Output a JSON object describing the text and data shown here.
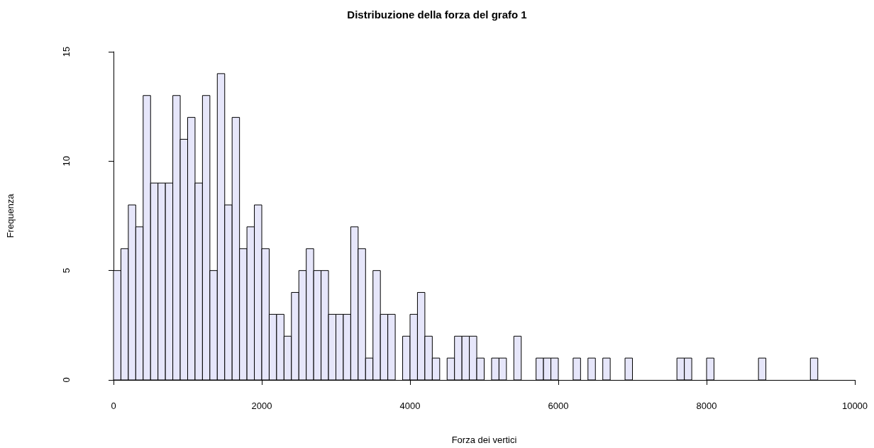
{
  "chart_data": {
    "type": "histogram",
    "title": "Distribuzione della forza del grafo 1",
    "xlabel": "Forza dei vertici",
    "ylabel": "Frequenza",
    "bins": [
      0,
      100,
      200,
      300,
      400,
      500,
      600,
      700,
      800,
      900,
      1000,
      1100,
      1200,
      1300,
      1400,
      1500,
      1600,
      1700,
      1800,
      1900,
      2000,
      2100,
      2200,
      2300,
      2400,
      2500,
      2600,
      2700,
      2800,
      2900,
      3000,
      3100,
      3200,
      3300,
      3400,
      3500,
      3600,
      3700,
      3800,
      3900,
      4000,
      4100,
      4200,
      4300,
      4400,
      4500,
      4600,
      4700,
      4800,
      4900,
      5000,
      5100,
      5200,
      5300,
      5400,
      5500,
      5600,
      5700,
      5800,
      5900,
      6000,
      6100,
      6200,
      6300,
      6400,
      6500,
      6600,
      6700,
      6800,
      6900,
      7000,
      7100,
      7200,
      7300,
      7400,
      7500,
      7600,
      7700,
      7800,
      7900,
      8000,
      8100,
      8200,
      8300,
      8400,
      8500,
      8600,
      8700,
      8800,
      8900,
      9000,
      9100,
      9200,
      9300,
      9400,
      9500
    ],
    "values": [
      5,
      6,
      8,
      7,
      13,
      9,
      9,
      9,
      13,
      11,
      12,
      9,
      13,
      5,
      14,
      8,
      12,
      6,
      7,
      8,
      6,
      3,
      3,
      2,
      4,
      5,
      6,
      5,
      5,
      3,
      3,
      3,
      7,
      6,
      1,
      5,
      3,
      3,
      0,
      2,
      3,
      4,
      2,
      1,
      0,
      1,
      2,
      2,
      2,
      1,
      0,
      1,
      1,
      0,
      2,
      0,
      0,
      1,
      1,
      1,
      0,
      0,
      1,
      0,
      1,
      0,
      1,
      0,
      0,
      1,
      0,
      0,
      0,
      0,
      0,
      0,
      1,
      1,
      0,
      0,
      1,
      0,
      0,
      0,
      0,
      0,
      0,
      1,
      0,
      0,
      0,
      0,
      0,
      0,
      1
    ],
    "color": "#e6e6fa",
    "xlim": [
      0,
      10000
    ],
    "xticks": [
      0,
      2000,
      4000,
      6000,
      8000,
      10000
    ],
    "ylim": [
      0,
      15
    ],
    "yticks": [
      0,
      5,
      10,
      15
    ],
    "grid": false
  }
}
